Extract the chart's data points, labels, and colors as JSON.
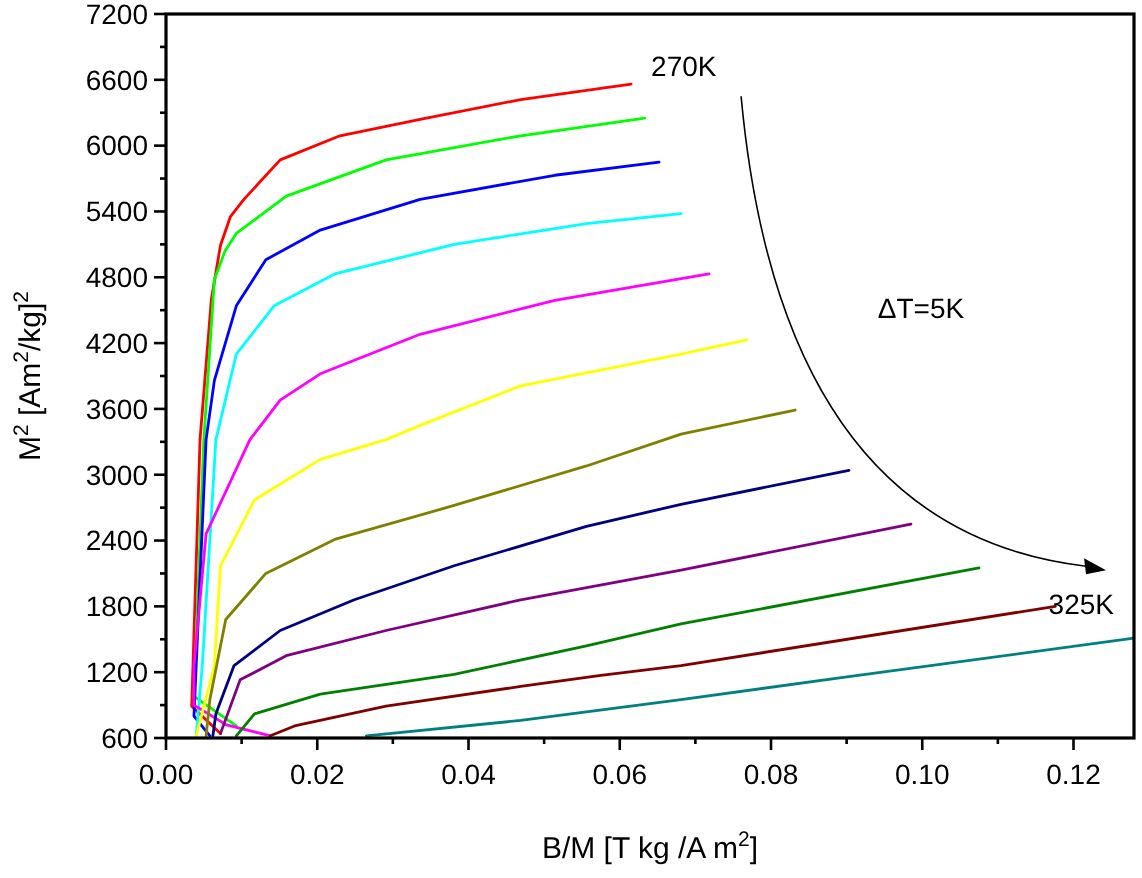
{
  "chart_data": {
    "type": "line",
    "xlabel": "B/M [T kg /A m$^{2}$]",
    "ylabel": "M$^{2}$ [Am$^{2}$/kg]$^{2}$",
    "xlim": [
      0,
      0.128
    ],
    "ylim": [
      600,
      7200
    ],
    "xticks": [
      {
        "value": 0,
        "label": "0.00"
      },
      {
        "value": 0.01,
        "label": null
      },
      {
        "value": 0.02,
        "label": "0.02"
      },
      {
        "value": 0.03,
        "label": null
      },
      {
        "value": 0.04,
        "label": "0.04"
      },
      {
        "value": 0.05,
        "label": null
      },
      {
        "value": 0.06,
        "label": "0.06"
      },
      {
        "value": 0.07,
        "label": null
      },
      {
        "value": 0.08,
        "label": "0.08"
      },
      {
        "value": 0.09,
        "label": null
      },
      {
        "value": 0.1,
        "label": "0.10"
      },
      {
        "value": 0.11,
        "label": null
      },
      {
        "value": 0.12,
        "label": "0.12"
      }
    ],
    "yticks": [
      600,
      {
        "value": 900,
        "label": null
      },
      1200,
      {
        "value": 1500,
        "label": null
      },
      1800,
      {
        "value": 2100,
        "label": null
      },
      2400,
      {
        "value": 2700,
        "label": null
      },
      3000,
      {
        "value": 3300,
        "label": null
      },
      3600,
      {
        "value": 3900,
        "label": null
      },
      4200,
      {
        "value": 4500,
        "label": null
      },
      4800,
      {
        "value": 5100,
        "label": null
      },
      5400,
      {
        "value": 5700,
        "label": null
      },
      6000,
      {
        "value": 6300,
        "label": null
      },
      6600,
      {
        "value": 6900,
        "label": null
      },
      7200
    ],
    "grid": false,
    "marker": "none",
    "line_style": "solid",
    "annotations": [
      {
        "text": "270K",
        "x": 0.0615,
        "y": 6560
      },
      {
        "text": "325K",
        "x": 0.128,
        "y": 1510
      },
      "ΔT=5K"
    ],
    "series": [
      {
        "color": "#ff0000",
        "x": [
          0.0072,
          0.0034,
          0.0045,
          0.006,
          0.0072,
          0.0085,
          0.0103,
          0.0151,
          0.023,
          0.0336,
          0.0469,
          0.0615
        ],
        "values": [
          640,
          890,
          3320,
          4600,
          5090,
          5350,
          5510,
          5870,
          6090,
          6240,
          6420,
          6560
        ]
      },
      {
        "color": "#00ff00",
        "x": [
          0.0093,
          0.0037,
          0.005,
          0.0064,
          0.0078,
          0.0093,
          0.0159,
          0.0291,
          0.0469,
          0.0633
        ],
        "values": [
          710,
          980,
          3320,
          4780,
          5040,
          5200,
          5540,
          5870,
          6090,
          6250
        ]
      },
      {
        "color": "#0000ff",
        "x": [
          0.0058,
          0.0037,
          0.0053,
          0.0064,
          0.0093,
          0.0132,
          0.0204,
          0.0336,
          0.0514,
          0.0652
        ],
        "values": [
          620,
          800,
          3320,
          3860,
          4540,
          4960,
          5230,
          5510,
          5730,
          5850
        ]
      },
      {
        "color": "#00ffff",
        "x": [
          0.004,
          0.0048,
          0.0066,
          0.0093,
          0.0143,
          0.0223,
          0.0381,
          0.0556,
          0.0681
        ],
        "values": [
          620,
          1260,
          3320,
          4100,
          4540,
          4830,
          5100,
          5290,
          5380
        ]
      },
      {
        "color": "#ff00ff",
        "x": [
          0.0138,
          0.008,
          0.0037,
          0.0037,
          0.0053,
          0.0111,
          0.0151,
          0.0204,
          0.0336,
          0.0514,
          0.0718
        ],
        "values": [
          620,
          720,
          900,
          1260,
          2460,
          3320,
          3680,
          3920,
          4280,
          4590,
          4830
        ]
      },
      {
        "color": "#ffff00",
        "x": [
          0.004,
          0.0064,
          0.0072,
          0.0117,
          0.0204,
          0.0291,
          0.0336,
          0.0469,
          0.0681,
          0.0768
        ],
        "values": [
          620,
          1260,
          2170,
          2770,
          3140,
          3320,
          3450,
          3810,
          4100,
          4230
        ]
      },
      {
        "color": "#808000",
        "x": [
          0.0053,
          0.0058,
          0.0079,
          0.0132,
          0.0223,
          0.0381,
          0.0556,
          0.0681,
          0.0832
        ],
        "values": [
          620,
          950,
          1680,
          2100,
          2410,
          2720,
          3080,
          3370,
          3590
        ]
      },
      {
        "color": "#000080",
        "x": [
          0.0062,
          0.0066,
          0.009,
          0.0151,
          0.0249,
          0.0381,
          0.0556,
          0.0681,
          0.0903
        ],
        "values": [
          620,
          820,
          1260,
          1580,
          1860,
          2170,
          2530,
          2730,
          3040
        ]
      },
      {
        "color": "#800080",
        "x": [
          0.0072,
          0.0098,
          0.0159,
          0.0291,
          0.0469,
          0.0681,
          0.0985
        ],
        "values": [
          640,
          1130,
          1350,
          1580,
          1860,
          2130,
          2550
        ]
      },
      {
        "color": "#008000",
        "x": [
          0.0093,
          0.0117,
          0.0204,
          0.0381,
          0.0556,
          0.0681,
          0.1075
        ],
        "values": [
          620,
          820,
          1000,
          1180,
          1440,
          1640,
          2150
        ]
      },
      {
        "color": "#800000",
        "x": [
          0.0138,
          0.017,
          0.0291,
          0.0469,
          0.0575,
          0.0681,
          0.1176
        ],
        "values": [
          620,
          710,
          890,
          1070,
          1170,
          1260,
          1800
        ]
      },
      {
        "color": "#008080",
        "x": [
          0.0265,
          0.0469,
          0.0681,
          0.0893,
          0.128
        ],
        "values": [
          620,
          760,
          950,
          1150,
          1510
        ]
      }
    ]
  }
}
